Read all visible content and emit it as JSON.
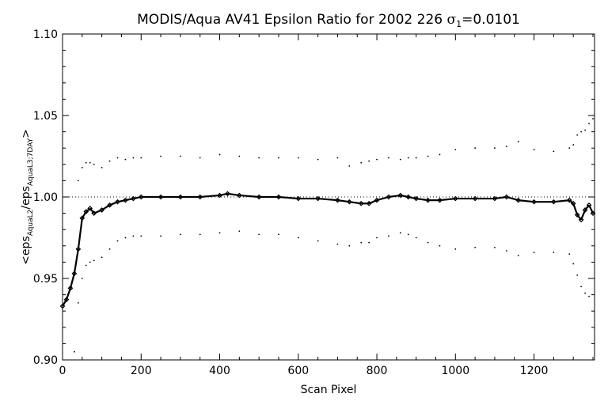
{
  "chart_data": {
    "type": "scatter",
    "title": {
      "main": "MODIS/Aqua AV41 Epsilon Ratio for 2002 226 ",
      "sigma_symbol": "σ",
      "sigma_sub": "1",
      "sigma_value": "=0.0101"
    },
    "xlabel": "Scan Pixel",
    "ylabel": {
      "prefix": "<eps",
      "sub1": "AquaL2",
      "mid": "/eps",
      "sub2": "AquaL3;7DAY",
      "suffix": ">"
    },
    "xlim": [
      0,
      1354
    ],
    "ylim": [
      0.9,
      1.1
    ],
    "x_ticks": [
      {
        "value": 0,
        "label": "0"
      },
      {
        "value": 200,
        "label": "200"
      },
      {
        "value": 400,
        "label": "400"
      },
      {
        "value": 600,
        "label": "600"
      },
      {
        "value": 800,
        "label": "800"
      },
      {
        "value": 1000,
        "label": "1000"
      },
      {
        "value": 1200,
        "label": "1200"
      }
    ],
    "y_ticks": [
      {
        "value": 0.9,
        "label": "0.90"
      },
      {
        "value": 0.95,
        "label": "0.95"
      },
      {
        "value": 1.0,
        "label": "1.00"
      },
      {
        "value": 1.05,
        "label": "1.05"
      },
      {
        "value": 1.1,
        "label": "1.10"
      }
    ],
    "reference_line": 1.0,
    "series": [
      {
        "role": "mean",
        "x": [
          0,
          10,
          20,
          30,
          40,
          50,
          60,
          70,
          80,
          100,
          120,
          140,
          160,
          180,
          200,
          250,
          300,
          350,
          400,
          420,
          450,
          500,
          550,
          600,
          650,
          700,
          730,
          760,
          780,
          800,
          830,
          860,
          880,
          900,
          930,
          960,
          1000,
          1050,
          1100,
          1130,
          1160,
          1200,
          1250,
          1290,
          1300,
          1310,
          1320,
          1330,
          1340,
          1350
        ],
        "y": [
          0.933,
          0.937,
          0.944,
          0.953,
          0.968,
          0.987,
          0.991,
          0.993,
          0.99,
          0.992,
          0.995,
          0.997,
          0.998,
          0.999,
          1.0,
          1.0,
          1.0,
          1.0,
          1.001,
          1.002,
          1.001,
          1.0,
          1.0,
          0.999,
          0.999,
          0.998,
          0.997,
          0.996,
          0.996,
          0.998,
          1.0,
          1.001,
          1.0,
          0.999,
          0.998,
          0.998,
          0.999,
          0.999,
          0.999,
          1.0,
          0.998,
          0.997,
          0.997,
          0.998,
          0.996,
          0.989,
          0.986,
          0.992,
          0.995,
          0.99
        ]
      },
      {
        "role": "upper",
        "x": [
          40,
          50,
          60,
          70,
          80,
          100,
          120,
          140,
          160,
          180,
          200,
          250,
          300,
          350,
          400,
          450,
          500,
          550,
          600,
          650,
          700,
          730,
          760,
          780,
          800,
          830,
          860,
          880,
          900,
          930,
          960,
          1000,
          1050,
          1100,
          1130,
          1160,
          1200,
          1250,
          1290,
          1300,
          1310,
          1320,
          1330,
          1340,
          1350
        ],
        "y": [
          1.01,
          1.018,
          1.021,
          1.021,
          1.02,
          1.018,
          1.022,
          1.024,
          1.023,
          1.024,
          1.024,
          1.025,
          1.025,
          1.024,
          1.026,
          1.025,
          1.024,
          1.024,
          1.024,
          1.023,
          1.024,
          1.019,
          1.021,
          1.022,
          1.023,
          1.024,
          1.023,
          1.024,
          1.024,
          1.025,
          1.026,
          1.029,
          1.03,
          1.03,
          1.031,
          1.034,
          1.029,
          1.028,
          1.03,
          1.032,
          1.038,
          1.04,
          1.041,
          1.045,
          1.048
        ]
      },
      {
        "role": "lower",
        "x": [
          30,
          40,
          50,
          60,
          70,
          80,
          100,
          120,
          140,
          160,
          180,
          200,
          250,
          300,
          350,
          400,
          450,
          500,
          550,
          600,
          650,
          700,
          730,
          760,
          780,
          800,
          830,
          860,
          880,
          900,
          930,
          960,
          1000,
          1050,
          1100,
          1130,
          1160,
          1200,
          1250,
          1290,
          1300,
          1310,
          1320,
          1330,
          1340
        ],
        "y": [
          0.905,
          0.935,
          0.95,
          0.958,
          0.96,
          0.961,
          0.963,
          0.968,
          0.973,
          0.975,
          0.976,
          0.976,
          0.976,
          0.977,
          0.977,
          0.978,
          0.979,
          0.977,
          0.977,
          0.975,
          0.973,
          0.971,
          0.97,
          0.972,
          0.972,
          0.975,
          0.976,
          0.978,
          0.977,
          0.975,
          0.972,
          0.97,
          0.968,
          0.969,
          0.969,
          0.967,
          0.964,
          0.966,
          0.966,
          0.965,
          0.959,
          0.952,
          0.945,
          0.941,
          0.939
        ]
      }
    ]
  }
}
